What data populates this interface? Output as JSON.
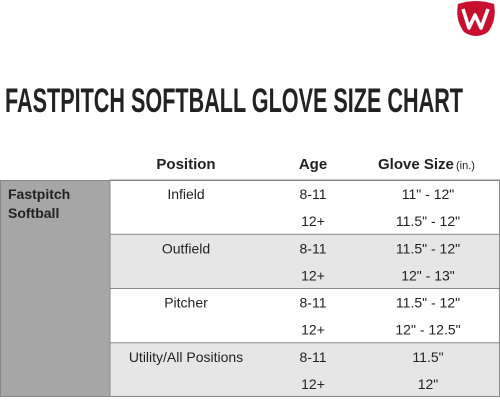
{
  "header": {
    "title": "FASTPITCH SOFTBALL GLOVE SIZE CHART"
  },
  "table": {
    "columns": {
      "position": "Position",
      "age": "Age",
      "glove_size": "Glove Size",
      "unit": "(in.)"
    },
    "group": [
      "Fastpitch",
      "Softball"
    ],
    "rows": [
      {
        "position": "Infield",
        "sizes": [
          {
            "age": "8-11",
            "glove": "11\" - 12\""
          },
          {
            "age": "12+",
            "glove": "11.5\" - 12\""
          }
        ]
      },
      {
        "position": "Outfield",
        "sizes": [
          {
            "age": "8-11",
            "glove": "11.5\" - 12\""
          },
          {
            "age": "12+",
            "glove": "12\" - 13\""
          }
        ]
      },
      {
        "position": "Pitcher",
        "sizes": [
          {
            "age": "8-11",
            "glove": "11.5\" - 12\""
          },
          {
            "age": "12+",
            "glove": "12\" - 12.5\""
          }
        ]
      },
      {
        "position": "Utility/All Positions",
        "sizes": [
          {
            "age": "8-11",
            "glove": "11.5\""
          },
          {
            "age": "12+",
            "glove": "12\""
          }
        ]
      }
    ]
  }
}
